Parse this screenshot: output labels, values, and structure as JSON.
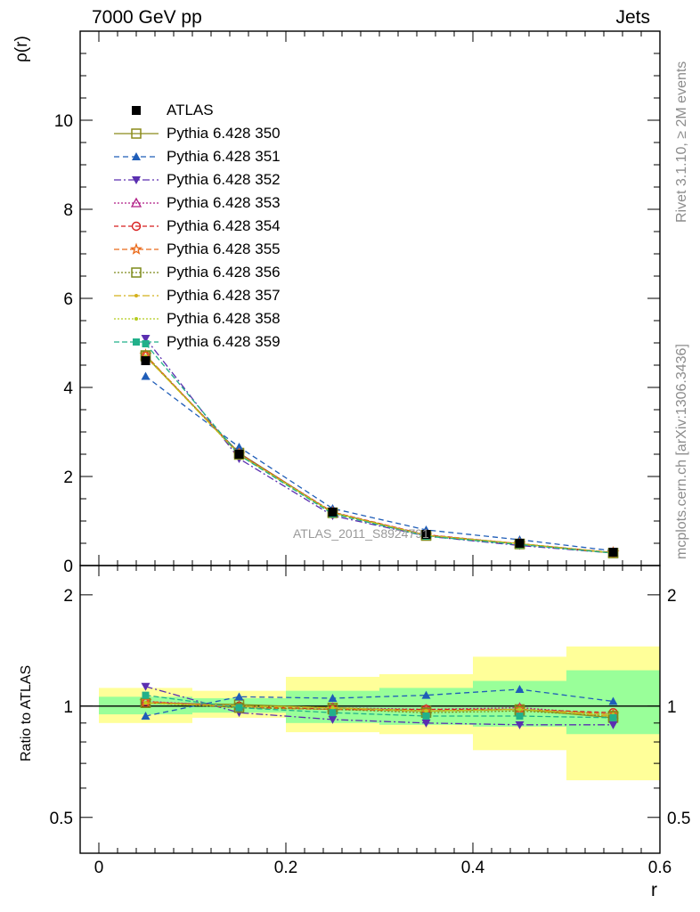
{
  "header": {
    "left": "7000 GeV pp",
    "right": "Jets"
  },
  "side_text": {
    "upper": "Rivet 3.1.10, ≥ 2M events",
    "lower": "mcplots.cern.ch [arXiv:1306.3436]"
  },
  "watermark": "ATLAS_2011_S8924791",
  "chart_data": [
    {
      "type": "line",
      "panel": "main",
      "ylabel": "ρ(r)",
      "xlim": [
        -0.02,
        0.6
      ],
      "ylim": [
        0,
        12
      ],
      "yticks": [
        0,
        2,
        4,
        6,
        8,
        10
      ],
      "ytick_labels": [
        "0",
        "2",
        "4",
        "6",
        "8",
        "10"
      ],
      "x": [
        0.05,
        0.15,
        0.25,
        0.35,
        0.45,
        0.55
      ],
      "data": {
        "name": "ATLAS",
        "values": [
          4.6,
          2.5,
          1.2,
          0.7,
          0.5,
          0.3
        ]
      },
      "series": [
        {
          "name": "Pythia 6.428 350",
          "color": "#8b8b1a",
          "dash": "",
          "marker": "square-open",
          "values": [
            4.7,
            2.53,
            1.19,
            0.68,
            0.49,
            0.28
          ]
        },
        {
          "name": "Pythia 6.428 351",
          "color": "#1f5db8",
          "dash": "6,4",
          "marker": "triangle-up",
          "values": [
            4.25,
            2.66,
            1.28,
            0.8,
            0.58,
            0.33
          ]
        },
        {
          "name": "Pythia 6.428 352",
          "color": "#5a2fb0",
          "dash": "8,3,2,3",
          "marker": "triangle-down",
          "values": [
            5.1,
            2.4,
            1.12,
            0.66,
            0.45,
            0.28
          ]
        },
        {
          "name": "Pythia 6.428 353",
          "color": "#b01e86",
          "dash": "2,2",
          "marker": "triangle-open",
          "values": [
            4.72,
            2.52,
            1.2,
            0.69,
            0.49,
            0.29
          ]
        },
        {
          "name": "Pythia 6.428 354",
          "color": "#d81e1e",
          "dash": "5,3",
          "marker": "circle-open",
          "values": [
            4.7,
            2.51,
            1.2,
            0.69,
            0.49,
            0.29
          ]
        },
        {
          "name": "Pythia 6.428 355",
          "color": "#ea6a1a",
          "dash": "6,3",
          "marker": "star-open",
          "values": [
            4.73,
            2.5,
            1.19,
            0.68,
            0.49,
            0.29
          ]
        },
        {
          "name": "Pythia 6.428 356",
          "color": "#7d8a1a",
          "dash": "2,2",
          "marker": "square-open",
          "values": [
            4.72,
            2.49,
            1.18,
            0.67,
            0.48,
            0.28
          ]
        },
        {
          "name": "Pythia 6.428 357",
          "color": "#d4b01a",
          "dash": "8,3,2,3",
          "marker": "dot",
          "values": [
            4.7,
            2.5,
            1.19,
            0.68,
            0.49,
            0.28
          ]
        },
        {
          "name": "Pythia 6.428 358",
          "color": "#b4cc1e",
          "dash": "2,2",
          "marker": "dot",
          "values": [
            4.7,
            2.5,
            1.19,
            0.68,
            0.49,
            0.29
          ]
        },
        {
          "name": "Pythia 6.428 359",
          "color": "#22b08a",
          "dash": "6,3",
          "marker": "square-fill",
          "values": [
            4.98,
            2.48,
            1.16,
            0.66,
            0.47,
            0.28
          ]
        }
      ]
    },
    {
      "type": "line",
      "panel": "ratio",
      "ylabel": "Ratio to ATLAS",
      "xlabel": "r",
      "xlim": [
        -0.02,
        0.6
      ],
      "ylim": [
        0.4,
        2.4
      ],
      "log_y": true,
      "yticks": [
        0.5,
        1,
        2
      ],
      "ytick_labels": [
        "0.5",
        "1",
        "2"
      ],
      "xticks": [
        0,
        0.2,
        0.4,
        0.6
      ],
      "xtick_labels": [
        "0",
        "0.2",
        "0.4",
        "0.6"
      ],
      "x": [
        0.05,
        0.15,
        0.25,
        0.35,
        0.45,
        0.55
      ],
      "bins": [
        [
          0.0,
          0.1
        ],
        [
          0.1,
          0.2
        ],
        [
          0.2,
          0.3
        ],
        [
          0.3,
          0.4
        ],
        [
          0.4,
          0.5
        ],
        [
          0.5,
          0.6
        ]
      ],
      "band_total": {
        "color": "#ffff99",
        "low": [
          0.9,
          0.93,
          0.85,
          0.84,
          0.76,
          0.63
        ],
        "high": [
          1.12,
          1.1,
          1.2,
          1.22,
          1.36,
          1.45
        ]
      },
      "band_stat": {
        "color": "#99ff99",
        "low": [
          0.95,
          0.96,
          0.9,
          0.89,
          0.88,
          0.84
        ],
        "high": [
          1.06,
          1.05,
          1.1,
          1.12,
          1.17,
          1.25
        ]
      },
      "reference": 1,
      "series": [
        {
          "name": "Pythia 6.428 350",
          "color": "#8b8b1a",
          "dash": "",
          "marker": "square-open",
          "values": [
            1.02,
            1.01,
            0.99,
            0.97,
            0.98,
            0.93
          ]
        },
        {
          "name": "Pythia 6.428 351",
          "color": "#1f5db8",
          "dash": "6,4",
          "marker": "triangle-up",
          "values": [
            0.94,
            1.06,
            1.05,
            1.07,
            1.11,
            1.03
          ]
        },
        {
          "name": "Pythia 6.428 352",
          "color": "#5a2fb0",
          "dash": "8,3,2,3",
          "marker": "triangle-down",
          "values": [
            1.13,
            0.96,
            0.92,
            0.9,
            0.89,
            0.89
          ]
        },
        {
          "name": "Pythia 6.428 353",
          "color": "#b01e86",
          "dash": "2,2",
          "marker": "triangle-open",
          "values": [
            1.03,
            1.0,
            0.99,
            0.98,
            0.99,
            0.95
          ]
        },
        {
          "name": "Pythia 6.428 354",
          "color": "#d81e1e",
          "dash": "5,3",
          "marker": "circle-open",
          "values": [
            1.02,
            1.0,
            0.98,
            0.98,
            0.98,
            0.96
          ]
        },
        {
          "name": "Pythia 6.428 355",
          "color": "#ea6a1a",
          "dash": "6,3",
          "marker": "star-open",
          "values": [
            1.03,
            0.99,
            0.98,
            0.97,
            0.98,
            0.95
          ]
        },
        {
          "name": "Pythia 6.428 356",
          "color": "#7d8a1a",
          "dash": "2,2",
          "marker": "square-open",
          "values": [
            1.02,
            0.99,
            0.98,
            0.96,
            0.97,
            0.94
          ]
        },
        {
          "name": "Pythia 6.428 357",
          "color": "#d4b01a",
          "dash": "8,3,2,3",
          "marker": "dot",
          "values": [
            1.02,
            1.0,
            0.99,
            0.97,
            0.98,
            0.94
          ]
        },
        {
          "name": "Pythia 6.428 358",
          "color": "#b4cc1e",
          "dash": "2,2",
          "marker": "dot",
          "values": [
            1.02,
            1.0,
            0.99,
            0.97,
            0.98,
            0.95
          ]
        },
        {
          "name": "Pythia 6.428 359",
          "color": "#22b08a",
          "dash": "6,3",
          "marker": "square-fill",
          "values": [
            1.07,
            0.99,
            0.96,
            0.94,
            0.94,
            0.93
          ]
        }
      ]
    }
  ]
}
